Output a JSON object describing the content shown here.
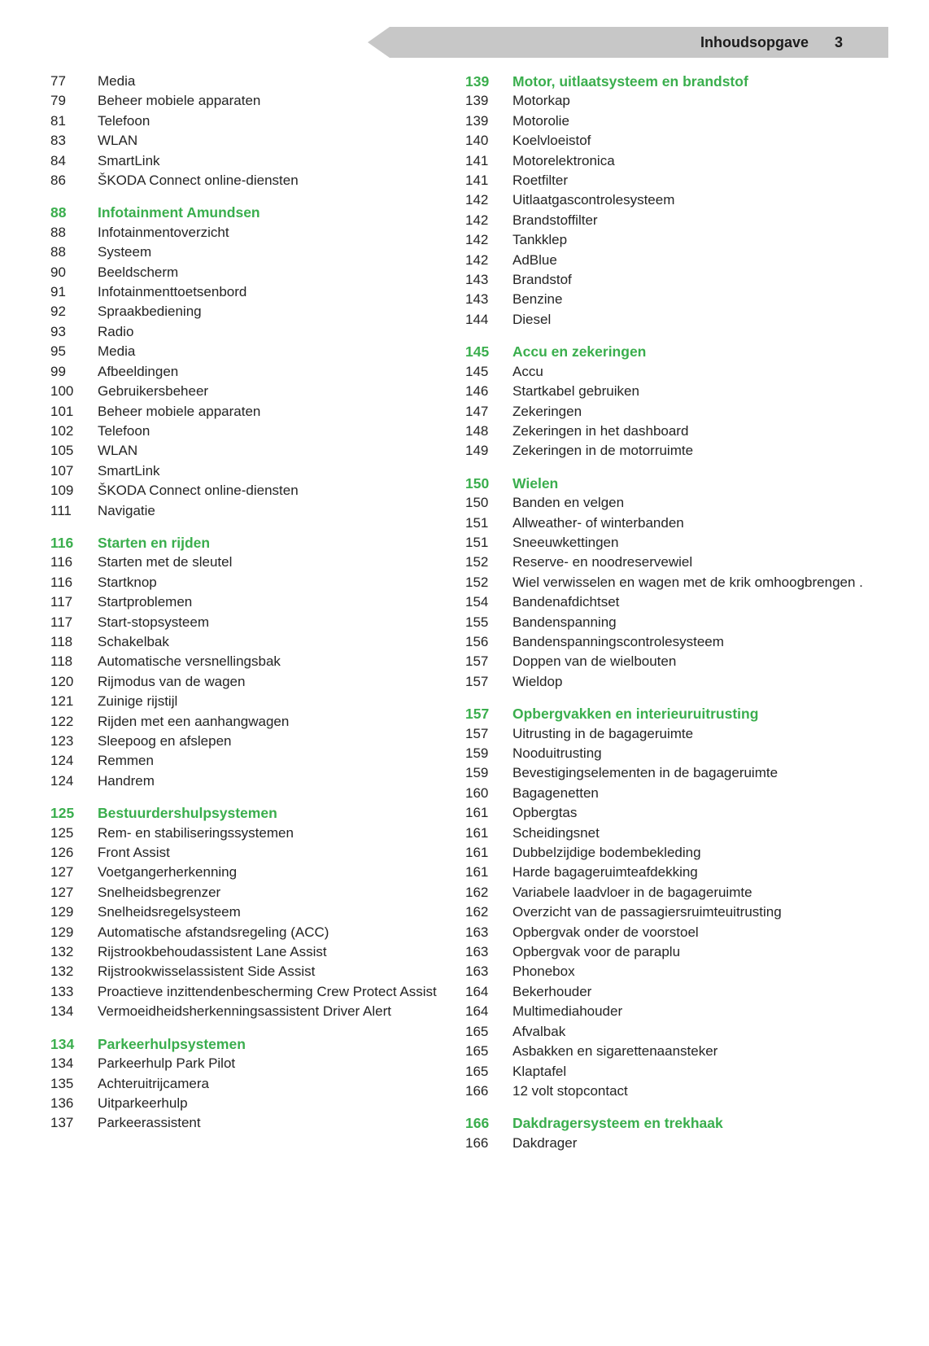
{
  "header": {
    "title": "Inhoudsopgave",
    "page_number": "3"
  },
  "colors": {
    "section_green": "#3aae4d",
    "banner_gray": "#c7c7c7",
    "text": "#242424"
  },
  "toc": {
    "columns": [
      {
        "groups": [
          {
            "heading": null,
            "entries": [
              {
                "page": "77",
                "title": "Media"
              },
              {
                "page": "79",
                "title": "Beheer mobiele apparaten"
              },
              {
                "page": "81",
                "title": "Telefoon"
              },
              {
                "page": "83",
                "title": "WLAN"
              },
              {
                "page": "84",
                "title": "SmartLink"
              },
              {
                "page": "86",
                "title": "ŠKODA Connect online-diensten"
              }
            ]
          },
          {
            "heading": {
              "page": "88",
              "title": "Infotainment Amundsen"
            },
            "entries": [
              {
                "page": "88",
                "title": "Infotainmentoverzicht"
              },
              {
                "page": "88",
                "title": "Systeem"
              },
              {
                "page": "90",
                "title": "Beeldscherm"
              },
              {
                "page": "91",
                "title": "Infotainmenttoetsenbord"
              },
              {
                "page": "92",
                "title": "Spraakbediening"
              },
              {
                "page": "93",
                "title": "Radio"
              },
              {
                "page": "95",
                "title": "Media"
              },
              {
                "page": "99",
                "title": "Afbeeldingen"
              },
              {
                "page": "100",
                "title": "Gebruikersbeheer"
              },
              {
                "page": "101",
                "title": "Beheer mobiele apparaten"
              },
              {
                "page": "102",
                "title": "Telefoon"
              },
              {
                "page": "105",
                "title": "WLAN"
              },
              {
                "page": "107",
                "title": "SmartLink"
              },
              {
                "page": "109",
                "title": "ŠKODA Connect online-diensten"
              },
              {
                "page": "111",
                "title": "Navigatie"
              }
            ]
          },
          {
            "heading": {
              "page": "116",
              "title": "Starten en rijden"
            },
            "entries": [
              {
                "page": "116",
                "title": "Starten met de sleutel"
              },
              {
                "page": "116",
                "title": "Startknop"
              },
              {
                "page": "117",
                "title": "Startproblemen"
              },
              {
                "page": "117",
                "title": "Start-stopsysteem"
              },
              {
                "page": "118",
                "title": "Schakelbak"
              },
              {
                "page": "118",
                "title": "Automatische versnellingsbak"
              },
              {
                "page": "120",
                "title": "Rijmodus van de wagen"
              },
              {
                "page": "121",
                "title": "Zuinige rijstijl"
              },
              {
                "page": "122",
                "title": "Rijden met een aanhangwagen"
              },
              {
                "page": "123",
                "title": "Sleepoog en afslepen"
              },
              {
                "page": "124",
                "title": "Remmen"
              },
              {
                "page": "124",
                "title": "Handrem"
              }
            ]
          },
          {
            "heading": {
              "page": "125",
              "title": "Bestuurdershulpsystemen"
            },
            "entries": [
              {
                "page": "125",
                "title": "Rem- en stabiliseringssystemen"
              },
              {
                "page": "126",
                "title": "Front Assist"
              },
              {
                "page": "127",
                "title": "Voetgangerherkenning"
              },
              {
                "page": "127",
                "title": "Snelheidsbegrenzer"
              },
              {
                "page": "129",
                "title": "Snelheidsregelsysteem"
              },
              {
                "page": "129",
                "title": "Automatische afstandsregeling (ACC)"
              },
              {
                "page": "132",
                "title": "Rijstrookbehoudassistent Lane Assist"
              },
              {
                "page": "132",
                "title": "Rijstrookwisselassistent Side Assist"
              },
              {
                "page": "133",
                "title": "Proactieve inzittendenbescherming Crew Protect Assist"
              },
              {
                "page": "134",
                "title": "Vermoeidheidsherkenningsassistent Driver Alert"
              }
            ]
          },
          {
            "heading": {
              "page": "134",
              "title": "Parkeerhulpsystemen"
            },
            "entries": [
              {
                "page": "134",
                "title": "Parkeerhulp Park Pilot"
              },
              {
                "page": "135",
                "title": "Achteruitrijcamera"
              },
              {
                "page": "136",
                "title": "Uitparkeerhulp"
              },
              {
                "page": "137",
                "title": "Parkeerassistent"
              }
            ]
          }
        ]
      },
      {
        "groups": [
          {
            "heading": {
              "page": "139",
              "title": "Motor, uitlaatsysteem en brandstof"
            },
            "entries": [
              {
                "page": "139",
                "title": "Motorkap"
              },
              {
                "page": "139",
                "title": "Motorolie"
              },
              {
                "page": "140",
                "title": "Koelvloeistof"
              },
              {
                "page": "141",
                "title": "Motorelektronica"
              },
              {
                "page": "141",
                "title": "Roetfilter"
              },
              {
                "page": "142",
                "title": "Uitlaatgascontrolesysteem"
              },
              {
                "page": "142",
                "title": "Brandstoffilter"
              },
              {
                "page": "142",
                "title": "Tankklep"
              },
              {
                "page": "142",
                "title": "AdBlue"
              },
              {
                "page": "143",
                "title": "Brandstof"
              },
              {
                "page": "143",
                "title": "Benzine"
              },
              {
                "page": "144",
                "title": "Diesel"
              }
            ]
          },
          {
            "heading": {
              "page": "145",
              "title": "Accu en zekeringen"
            },
            "entries": [
              {
                "page": "145",
                "title": "Accu"
              },
              {
                "page": "146",
                "title": "Startkabel gebruiken"
              },
              {
                "page": "147",
                "title": "Zekeringen"
              },
              {
                "page": "148",
                "title": "Zekeringen in het dashboard"
              },
              {
                "page": "149",
                "title": "Zekeringen in de motorruimte"
              }
            ]
          },
          {
            "heading": {
              "page": "150",
              "title": "Wielen"
            },
            "entries": [
              {
                "page": "150",
                "title": "Banden en velgen"
              },
              {
                "page": "151",
                "title": "Allweather- of winterbanden"
              },
              {
                "page": "151",
                "title": "Sneeuwkettingen"
              },
              {
                "page": "152",
                "title": "Reserve- en noodreservewiel"
              },
              {
                "page": "152",
                "title": "Wiel verwisselen en wagen met de krik omhoogbrengen ."
              },
              {
                "page": "154",
                "title": "Bandenafdichtset"
              },
              {
                "page": "155",
                "title": "Bandenspanning"
              },
              {
                "page": "156",
                "title": "Bandenspanningscontrolesysteem"
              },
              {
                "page": "157",
                "title": "Doppen van de wielbouten"
              },
              {
                "page": "157",
                "title": "Wieldop"
              }
            ]
          },
          {
            "heading": {
              "page": "157",
              "title": "Opbergvakken en interieuruitrusting"
            },
            "entries": [
              {
                "page": "157",
                "title": "Uitrusting in de bagageruimte"
              },
              {
                "page": "159",
                "title": "Nooduitrusting"
              },
              {
                "page": "159",
                "title": "Bevestigingselementen in de bagageruimte"
              },
              {
                "page": "160",
                "title": "Bagagenetten"
              },
              {
                "page": "161",
                "title": "Opbergtas"
              },
              {
                "page": "161",
                "title": "Scheidingsnet"
              },
              {
                "page": "161",
                "title": "Dubbelzijdige bodembekleding"
              },
              {
                "page": "161",
                "title": "Harde bagageruimteafdekking"
              },
              {
                "page": "162",
                "title": "Variabele laadvloer in de bagageruimte"
              },
              {
                "page": "162",
                "title": "Overzicht van de passagiersruimteuitrusting"
              },
              {
                "page": "163",
                "title": "Opbergvak onder de voorstoel"
              },
              {
                "page": "163",
                "title": "Opbergvak voor de paraplu"
              },
              {
                "page": "163",
                "title": "Phonebox"
              },
              {
                "page": "164",
                "title": "Bekerhouder"
              },
              {
                "page": "164",
                "title": "Multimediahouder"
              },
              {
                "page": "165",
                "title": "Afvalbak"
              },
              {
                "page": "165",
                "title": "Asbakken en sigarettenaansteker"
              },
              {
                "page": "165",
                "title": "Klaptafel"
              },
              {
                "page": "166",
                "title": "12 volt stopcontact"
              }
            ]
          },
          {
            "heading": {
              "page": "166",
              "title": "Dakdragersysteem en trekhaak"
            },
            "entries": [
              {
                "page": "166",
                "title": "Dakdrager"
              }
            ]
          }
        ]
      }
    ]
  }
}
